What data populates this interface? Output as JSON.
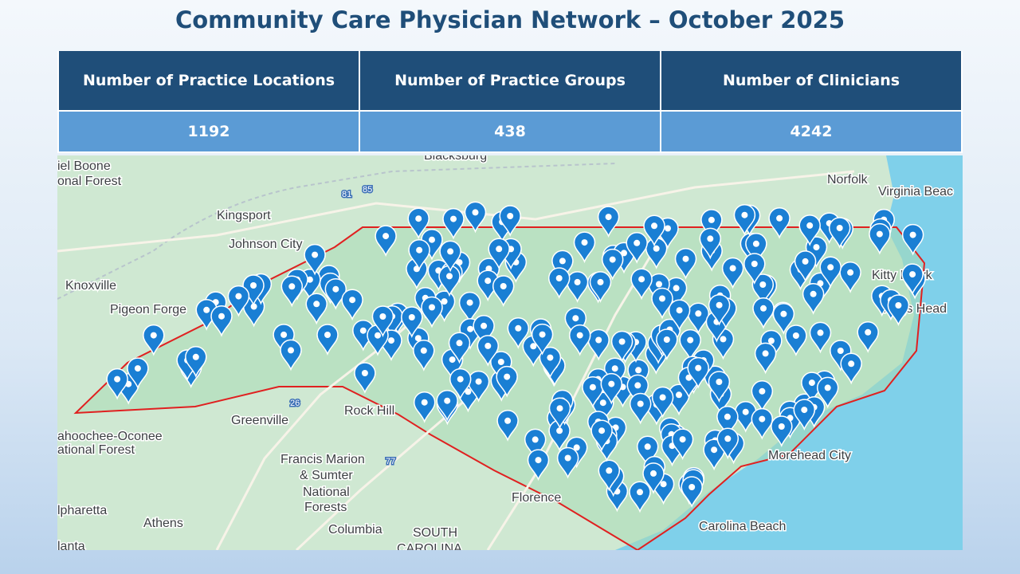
{
  "header": {
    "title": "Community Care Physician Network – October 2025"
  },
  "table": {
    "columns": [
      "Number of Practice Locations",
      "Number of Practice Groups",
      "Number of Clinicians"
    ],
    "rows": [
      [
        1192,
        438,
        4242
      ]
    ]
  },
  "map": {
    "labels": [
      "Blacksburg",
      "iel Boone",
      "onal Forest",
      "Kingsport",
      "Johnson City",
      "Knoxville",
      "Pigeon Forge",
      "Norfolk",
      "Virginia Beac",
      "Kitty Hawk",
      "Nags Head",
      "Greenville",
      "Rock Hill",
      "ahoochee-Oconee",
      "ational Forest",
      "Francis Marion",
      "& Sumter",
      "National",
      "Forests",
      "Florence",
      "Columbia",
      "SOUTH",
      "CAROLINA",
      "lpharetta",
      "Athens",
      "lanta",
      "Morehead City",
      "Carolina Beach",
      "81",
      "85",
      "26",
      "77"
    ]
  }
}
